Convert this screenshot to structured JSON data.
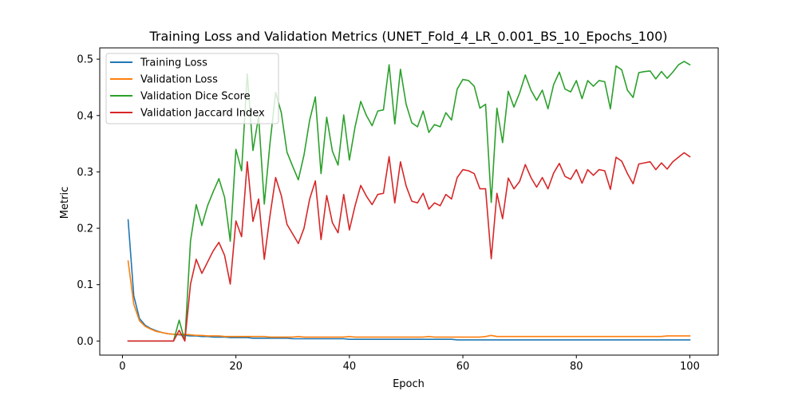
{
  "chart_data": {
    "type": "line",
    "title": "Training Loss and Validation Metrics (UNET_Fold_4_LR_0.001_BS_10_Epochs_100)",
    "xlabel": "Epoch",
    "ylabel": "Metric",
    "xlim": [
      -4,
      105
    ],
    "ylim": [
      -0.025,
      0.52
    ],
    "xticks": [
      0,
      20,
      40,
      60,
      80,
      100
    ],
    "yticks": [
      0.0,
      0.1,
      0.2,
      0.3,
      0.4,
      0.5
    ],
    "ytick_labels": [
      "0.0",
      "0.1",
      "0.2",
      "0.3",
      "0.4",
      "0.5"
    ],
    "legend_position": "top-left",
    "x": [
      1,
      2,
      3,
      4,
      5,
      6,
      7,
      8,
      9,
      10,
      11,
      12,
      13,
      14,
      15,
      16,
      17,
      18,
      19,
      20,
      21,
      22,
      23,
      24,
      25,
      26,
      27,
      28,
      29,
      30,
      31,
      32,
      33,
      34,
      35,
      36,
      37,
      38,
      39,
      40,
      41,
      42,
      43,
      44,
      45,
      46,
      47,
      48,
      49,
      50,
      51,
      52,
      53,
      54,
      55,
      56,
      57,
      58,
      59,
      60,
      61,
      62,
      63,
      64,
      65,
      66,
      67,
      68,
      69,
      70,
      71,
      72,
      73,
      74,
      75,
      76,
      77,
      78,
      79,
      80,
      81,
      82,
      83,
      84,
      85,
      86,
      87,
      88,
      89,
      90,
      91,
      92,
      93,
      94,
      95,
      96,
      97,
      98,
      99,
      100
    ],
    "series": [
      {
        "name": "Training Loss",
        "color": "#1f77b4",
        "values": [
          0.215,
          0.08,
          0.04,
          0.028,
          0.022,
          0.018,
          0.015,
          0.013,
          0.012,
          0.011,
          0.01,
          0.009,
          0.009,
          0.008,
          0.008,
          0.007,
          0.007,
          0.007,
          0.006,
          0.006,
          0.006,
          0.006,
          0.005,
          0.005,
          0.005,
          0.005,
          0.005,
          0.005,
          0.005,
          0.004,
          0.004,
          0.004,
          0.004,
          0.004,
          0.004,
          0.004,
          0.004,
          0.004,
          0.004,
          0.003,
          0.003,
          0.003,
          0.003,
          0.003,
          0.003,
          0.003,
          0.003,
          0.003,
          0.003,
          0.003,
          0.003,
          0.003,
          0.003,
          0.003,
          0.003,
          0.003,
          0.003,
          0.003,
          0.002,
          0.002,
          0.002,
          0.002,
          0.002,
          0.002,
          0.002,
          0.002,
          0.002,
          0.002,
          0.002,
          0.002,
          0.002,
          0.002,
          0.002,
          0.002,
          0.002,
          0.002,
          0.002,
          0.002,
          0.002,
          0.002,
          0.002,
          0.002,
          0.002,
          0.002,
          0.002,
          0.002,
          0.002,
          0.002,
          0.002,
          0.002,
          0.002,
          0.002,
          0.002,
          0.002,
          0.002,
          0.002,
          0.002,
          0.002,
          0.002,
          0.002
        ]
      },
      {
        "name": "Validation Loss",
        "color": "#ff7f0e",
        "values": [
          0.142,
          0.065,
          0.036,
          0.026,
          0.021,
          0.017,
          0.015,
          0.013,
          0.012,
          0.012,
          0.012,
          0.011,
          0.01,
          0.01,
          0.009,
          0.009,
          0.009,
          0.008,
          0.008,
          0.008,
          0.008,
          0.008,
          0.008,
          0.008,
          0.008,
          0.007,
          0.007,
          0.007,
          0.007,
          0.007,
          0.008,
          0.007,
          0.007,
          0.007,
          0.007,
          0.007,
          0.007,
          0.007,
          0.007,
          0.008,
          0.007,
          0.007,
          0.007,
          0.007,
          0.007,
          0.007,
          0.007,
          0.007,
          0.007,
          0.007,
          0.007,
          0.007,
          0.007,
          0.008,
          0.007,
          0.007,
          0.007,
          0.007,
          0.007,
          0.007,
          0.007,
          0.007,
          0.007,
          0.008,
          0.01,
          0.008,
          0.008,
          0.008,
          0.008,
          0.008,
          0.008,
          0.008,
          0.008,
          0.008,
          0.008,
          0.008,
          0.008,
          0.008,
          0.008,
          0.008,
          0.008,
          0.008,
          0.008,
          0.008,
          0.008,
          0.008,
          0.008,
          0.008,
          0.008,
          0.008,
          0.008,
          0.008,
          0.008,
          0.008,
          0.008,
          0.009,
          0.009,
          0.009,
          0.009,
          0.009
        ]
      },
      {
        "name": "Validation Dice Score",
        "color": "#2ca02c",
        "values": [
          0.0,
          0.0,
          0.0,
          0.0,
          0.0,
          0.0,
          0.0,
          0.0,
          0.0,
          0.037,
          0.0,
          0.178,
          0.242,
          0.205,
          0.24,
          0.265,
          0.288,
          0.255,
          0.177,
          0.34,
          0.302,
          0.474,
          0.338,
          0.398,
          0.243,
          0.35,
          0.441,
          0.405,
          0.335,
          0.31,
          0.286,
          0.33,
          0.392,
          0.433,
          0.297,
          0.397,
          0.337,
          0.312,
          0.401,
          0.321,
          0.38,
          0.425,
          0.4,
          0.382,
          0.408,
          0.41,
          0.49,
          0.385,
          0.482,
          0.42,
          0.387,
          0.38,
          0.408,
          0.37,
          0.384,
          0.38,
          0.405,
          0.392,
          0.447,
          0.464,
          0.462,
          0.452,
          0.413,
          0.42,
          0.246,
          0.413,
          0.352,
          0.443,
          0.415,
          0.44,
          0.472,
          0.445,
          0.427,
          0.445,
          0.412,
          0.455,
          0.477,
          0.447,
          0.442,
          0.462,
          0.43,
          0.462,
          0.452,
          0.462,
          0.46,
          0.412,
          0.488,
          0.481,
          0.445,
          0.432,
          0.476,
          0.478,
          0.479,
          0.465,
          0.478,
          0.466,
          0.477,
          0.49,
          0.496,
          0.49
        ]
      },
      {
        "name": "Validation Jaccard Index",
        "color": "#d62728",
        "values": [
          0.0,
          0.0,
          0.0,
          0.0,
          0.0,
          0.0,
          0.0,
          0.0,
          0.0,
          0.019,
          0.0,
          0.101,
          0.145,
          0.12,
          0.14,
          0.16,
          0.175,
          0.152,
          0.101,
          0.213,
          0.185,
          0.318,
          0.212,
          0.252,
          0.145,
          0.222,
          0.29,
          0.258,
          0.207,
          0.19,
          0.173,
          0.2,
          0.252,
          0.284,
          0.18,
          0.258,
          0.21,
          0.192,
          0.26,
          0.197,
          0.24,
          0.276,
          0.257,
          0.242,
          0.26,
          0.262,
          0.327,
          0.245,
          0.318,
          0.275,
          0.248,
          0.245,
          0.262,
          0.234,
          0.245,
          0.24,
          0.26,
          0.252,
          0.29,
          0.304,
          0.302,
          0.297,
          0.27,
          0.27,
          0.146,
          0.262,
          0.217,
          0.289,
          0.27,
          0.283,
          0.313,
          0.29,
          0.273,
          0.29,
          0.27,
          0.298,
          0.315,
          0.292,
          0.287,
          0.304,
          0.28,
          0.304,
          0.294,
          0.304,
          0.302,
          0.269,
          0.326,
          0.319,
          0.297,
          0.279,
          0.314,
          0.316,
          0.318,
          0.304,
          0.316,
          0.305,
          0.318,
          0.326,
          0.334,
          0.327
        ]
      }
    ]
  }
}
